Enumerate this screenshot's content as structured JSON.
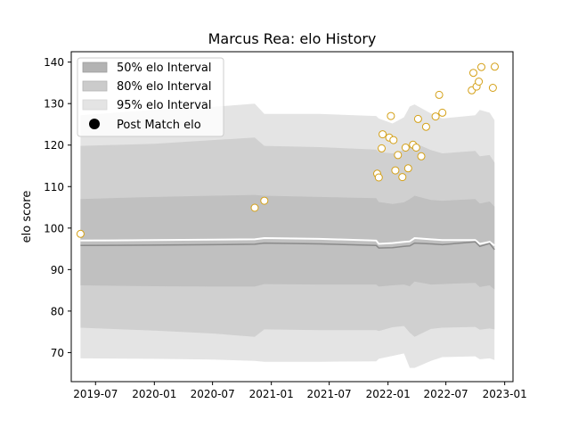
{
  "chart_data": {
    "type": "line",
    "title": "Marcus Rea: elo History",
    "xlabel": "",
    "ylabel": "elo score",
    "x_tick_labels": [
      "2019-07",
      "2020-01",
      "2020-07",
      "2021-01",
      "2021-07",
      "2022-01",
      "2022-07",
      "2023-01"
    ],
    "y_ticks": [
      70,
      80,
      90,
      100,
      110,
      120,
      130,
      140
    ],
    "ylim": [
      63,
      142.5
    ],
    "xlim": [
      "2019-04-16",
      "2023-01-27"
    ],
    "grid": false,
    "legend_position": "top-left",
    "legend": [
      {
        "label": "50% elo Interval",
        "kind": "band50"
      },
      {
        "label": "80% elo Interval",
        "kind": "band80"
      },
      {
        "label": "95% elo Interval",
        "kind": "band95"
      },
      {
        "label": "Post Match elo",
        "kind": "marker"
      }
    ],
    "colors": {
      "band95": "#e4e4e4",
      "band80": "#d0d0d0",
      "band50": "#c0c0c0",
      "mean_line": "#8a8a8a",
      "median_line": "#ffffff",
      "marker_edge": "#d4a017",
      "marker_face": "#ffffff"
    },
    "interval_series": [
      {
        "x": "2019-05-15",
        "mean": 95.8,
        "median": 97.0,
        "lo50": 86.2,
        "hi50": 107.0,
        "lo80": 76.0,
        "hi80": 119.8,
        "lo95": 68.6,
        "hi95": 127.2
      },
      {
        "x": "2020-01-01",
        "mean": 95.9,
        "median": 97.1,
        "lo50": 86.0,
        "hi50": 107.5,
        "lo80": 75.3,
        "hi80": 120.3,
        "lo95": 68.5,
        "hi95": 128.5
      },
      {
        "x": "2020-07-01",
        "mean": 96.0,
        "median": 97.2,
        "lo50": 85.9,
        "hi50": 107.8,
        "lo80": 74.6,
        "hi80": 121.2,
        "lo95": 68.3,
        "hi95": 129.2
      },
      {
        "x": "2020-11-10",
        "mean": 96.1,
        "median": 97.3,
        "lo50": 85.9,
        "hi50": 108.0,
        "lo80": 73.8,
        "hi80": 121.8,
        "lo95": 68.0,
        "hi95": 130.0
      },
      {
        "x": "2020-12-10",
        "mean": 96.4,
        "median": 97.6,
        "lo50": 86.5,
        "hi50": 107.8,
        "lo80": 75.6,
        "hi80": 119.8,
        "lo95": 67.8,
        "hi95": 127.5
      },
      {
        "x": "2021-06-01",
        "mean": 96.2,
        "median": 97.4,
        "lo50": 86.4,
        "hi50": 107.5,
        "lo80": 75.4,
        "hi80": 119.5,
        "lo95": 67.8,
        "hi95": 127.5
      },
      {
        "x": "2021-11-25",
        "mean": 95.8,
        "median": 97.0,
        "lo50": 86.4,
        "hi50": 107.2,
        "lo80": 75.4,
        "hi80": 118.9,
        "lo95": 67.9,
        "hi95": 127.0
      },
      {
        "x": "2021-12-03",
        "mean": 95.2,
        "median": 96.2,
        "lo50": 85.9,
        "hi50": 106.3,
        "lo80": 75.2,
        "hi80": 118.3,
        "lo95": 68.5,
        "hi95": 126.4
      },
      {
        "x": "2022-01-15",
        "mean": 95.3,
        "median": 96.4,
        "lo50": 86.2,
        "hi50": 105.8,
        "lo80": 76.1,
        "hi80": 118.0,
        "lo95": 69.2,
        "hi95": 125.2
      },
      {
        "x": "2022-02-20",
        "mean": 95.6,
        "median": 96.7,
        "lo50": 86.4,
        "hi50": 106.2,
        "lo80": 76.4,
        "hi80": 118.8,
        "lo95": 69.8,
        "hi95": 126.7
      },
      {
        "x": "2022-03-10",
        "mean": 95.7,
        "median": 96.8,
        "lo50": 86.0,
        "hi50": 107.0,
        "lo80": 74.8,
        "hi80": 119.7,
        "lo95": 66.3,
        "hi95": 129.3
      },
      {
        "x": "2022-03-25",
        "mean": 96.4,
        "median": 97.6,
        "lo50": 87.1,
        "hi50": 107.8,
        "lo80": 73.8,
        "hi80": 120.5,
        "lo95": 66.3,
        "hi95": 129.8
      },
      {
        "x": "2022-05-15",
        "mean": 96.2,
        "median": 97.3,
        "lo50": 86.4,
        "hi50": 106.8,
        "lo80": 75.7,
        "hi80": 118.8,
        "lo95": 68.0,
        "hi95": 127.6
      },
      {
        "x": "2022-06-20",
        "mean": 96.0,
        "median": 97.1,
        "lo50": 86.5,
        "hi50": 106.6,
        "lo80": 76.0,
        "hi80": 118.0,
        "lo95": 68.9,
        "hi95": 126.4
      },
      {
        "x": "2022-10-01",
        "mean": 96.7,
        "median": 97.1,
        "lo50": 86.8,
        "hi50": 107.0,
        "lo80": 76.2,
        "hi80": 118.6,
        "lo95": 69.1,
        "hi95": 127.2
      },
      {
        "x": "2022-10-15",
        "mean": 95.6,
        "median": 96.2,
        "lo50": 85.8,
        "hi50": 105.9,
        "lo80": 75.5,
        "hi80": 117.3,
        "lo95": 68.4,
        "hi95": 128.5
      },
      {
        "x": "2022-11-15",
        "mean": 96.3,
        "median": 96.7,
        "lo50": 86.2,
        "hi50": 106.4,
        "lo80": 75.8,
        "hi80": 117.6,
        "lo95": 68.6,
        "hi95": 127.8
      },
      {
        "x": "2022-11-30",
        "mean": 94.8,
        "median": 95.8,
        "lo50": 85.2,
        "hi50": 105.2,
        "lo80": 75.6,
        "hi80": 115.8,
        "lo95": 68.2,
        "hi95": 126.0
      }
    ],
    "post_match_points": [
      {
        "x": "2019-05-15",
        "y": 98.6
      },
      {
        "x": "2020-11-10",
        "y": 104.9
      },
      {
        "x": "2020-12-10",
        "y": 106.6
      },
      {
        "x": "2021-11-28",
        "y": 113.1
      },
      {
        "x": "2021-12-03",
        "y": 112.2
      },
      {
        "x": "2021-12-12",
        "y": 119.2
      },
      {
        "x": "2021-12-15",
        "y": 122.6
      },
      {
        "x": "2022-01-05",
        "y": 121.8
      },
      {
        "x": "2022-01-10",
        "y": 127.0
      },
      {
        "x": "2022-01-18",
        "y": 121.2
      },
      {
        "x": "2022-01-24",
        "y": 113.9
      },
      {
        "x": "2022-02-01",
        "y": 117.6
      },
      {
        "x": "2022-02-15",
        "y": 112.3
      },
      {
        "x": "2022-02-25",
        "y": 119.4
      },
      {
        "x": "2022-03-05",
        "y": 114.4
      },
      {
        "x": "2022-03-20",
        "y": 120.1
      },
      {
        "x": "2022-03-30",
        "y": 119.4
      },
      {
        "x": "2022-04-05",
        "y": 126.3
      },
      {
        "x": "2022-04-15",
        "y": 117.3
      },
      {
        "x": "2022-04-30",
        "y": 124.4
      },
      {
        "x": "2022-05-30",
        "y": 126.9
      },
      {
        "x": "2022-06-10",
        "y": 132.1
      },
      {
        "x": "2022-06-20",
        "y": 127.8
      },
      {
        "x": "2022-09-20",
        "y": 133.2
      },
      {
        "x": "2022-09-25",
        "y": 137.4
      },
      {
        "x": "2022-10-05",
        "y": 134.1
      },
      {
        "x": "2022-10-12",
        "y": 135.3
      },
      {
        "x": "2022-10-20",
        "y": 138.8
      },
      {
        "x": "2022-11-25",
        "y": 133.8
      },
      {
        "x": "2022-12-01",
        "y": 138.9
      }
    ]
  }
}
